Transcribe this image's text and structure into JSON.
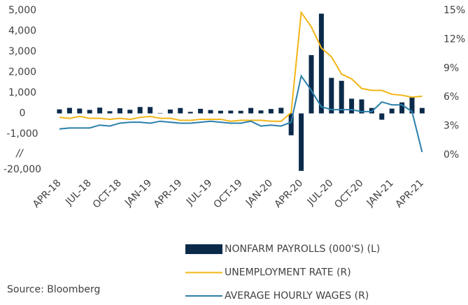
{
  "chart_data": {
    "type": "combo",
    "categories": [
      "APR-18",
      null,
      null,
      "JUL-18",
      null,
      null,
      "OCT-18",
      null,
      null,
      "JAN-19",
      null,
      null,
      "APR-19",
      null,
      null,
      "JUL-19",
      null,
      null,
      "OCT-19",
      null,
      null,
      "JAN-20",
      null,
      null,
      "APR-20",
      null,
      null,
      "JUL-20",
      null,
      null,
      "OCT-20",
      null,
      null,
      "JAN-21",
      null,
      null,
      "APR-21"
    ],
    "series": [
      {
        "name": "NONFARM PAYROLLS (000'S) (L)",
        "type": "bar",
        "color": "#0b2a4a",
        "values": [
          196,
          270,
          235,
          170,
          282,
          108,
          250,
          176,
          312,
          311,
          20,
          189,
          263,
          75,
          224,
          164,
          130,
          136,
          128,
          266,
          145,
          214,
          273,
          -1683,
          -20679,
          2833,
          4846,
          1726,
          1583,
          716,
          680,
          264,
          -306,
          233,
          536,
          785,
          266
        ]
      },
      {
        "name": "UNEMPLOYMENT RATE (R)",
        "type": "line",
        "axis": "y2",
        "color": "#f2b516",
        "values": [
          3.9,
          3.8,
          4.0,
          3.8,
          3.8,
          3.7,
          3.8,
          3.7,
          3.9,
          4.0,
          3.8,
          3.8,
          3.6,
          3.6,
          3.7,
          3.7,
          3.7,
          3.5,
          3.6,
          3.6,
          3.6,
          3.5,
          3.5,
          4.4,
          14.8,
          13.3,
          11.1,
          10.2,
          8.4,
          7.9,
          6.9,
          6.7,
          6.7,
          6.3,
          6.2,
          6.0,
          6.1
        ]
      },
      {
        "name": "AVERAGE HOURLY WAGES (R)",
        "type": "line",
        "axis": "y2",
        "color": "#2b7fab",
        "values": [
          2.7,
          2.8,
          2.8,
          2.8,
          3.1,
          3.0,
          3.3,
          3.4,
          3.4,
          3.3,
          3.5,
          3.4,
          3.3,
          3.3,
          3.4,
          3.5,
          3.4,
          3.3,
          3.3,
          3.5,
          3.0,
          3.1,
          3.0,
          3.4,
          8.2,
          6.7,
          5.0,
          4.7,
          4.7,
          4.7,
          4.5,
          4.5,
          5.5,
          5.2,
          5.2,
          4.5,
          0.3
        ]
      }
    ],
    "ylim": [
      -20000,
      5000
    ],
    "yticks": [
      {
        "value": 5000,
        "label": "5,000"
      },
      {
        "value": 4000,
        "label": "4,000"
      },
      {
        "value": 3000,
        "label": "3,000"
      },
      {
        "value": 2000,
        "label": "2,000"
      },
      {
        "value": 1000,
        "label": "1,000"
      },
      0,
      {
        "value": -1000,
        "label": "-1,000"
      },
      {
        "value": -20000,
        "label": "-20,000"
      }
    ],
    "axis_break_label": "//",
    "y2lim": [
      0,
      15
    ],
    "y2ticks": [
      {
        "value": 0,
        "label": "0%"
      },
      {
        "value": 3,
        "label": "3%"
      },
      {
        "value": 6,
        "label": "6%"
      },
      {
        "value": 9,
        "label": "9%"
      },
      {
        "value": 12,
        "label": "12%"
      },
      {
        "value": 15,
        "label": "15%"
      }
    ],
    "source": "Source: Bloomberg"
  }
}
